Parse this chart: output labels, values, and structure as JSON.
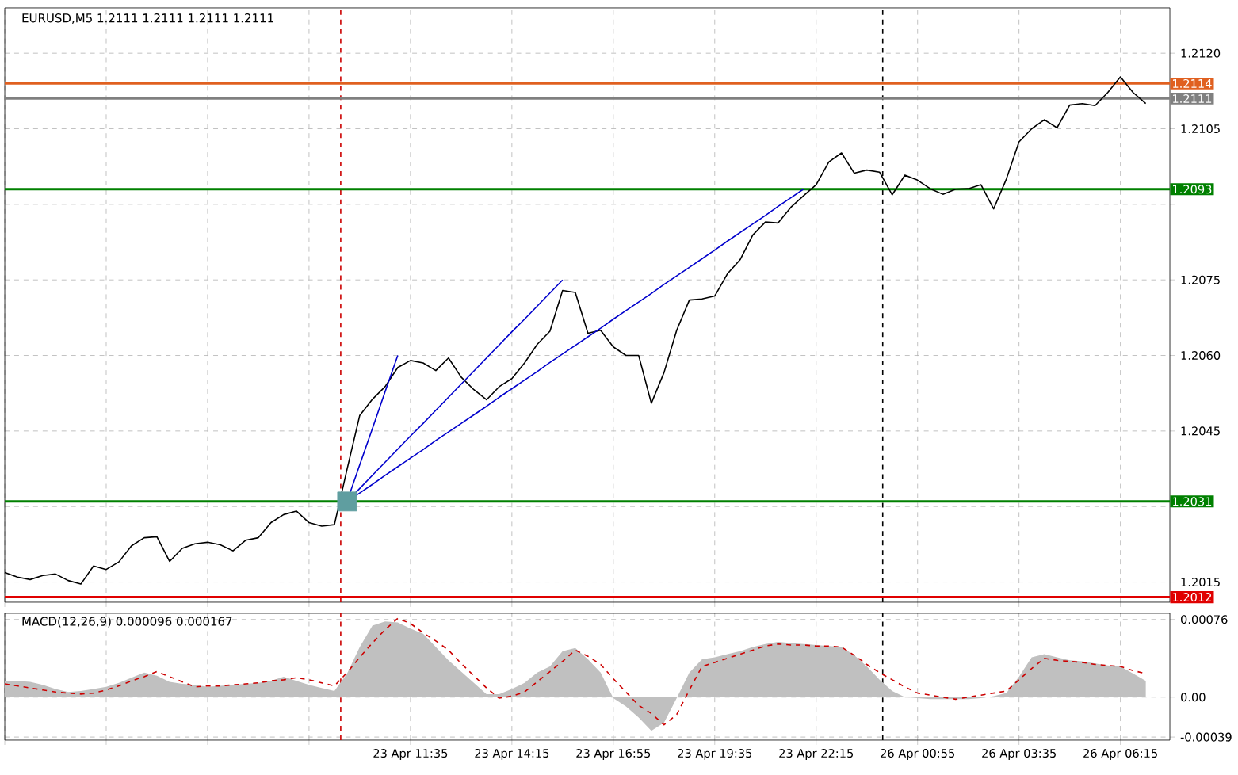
{
  "chart_data": [
    {
      "type": "line",
      "title": "EURUSD,M5  1.2111 1.2111 1.2111 1.2111",
      "ylim": [
        1.2011,
        1.2129
      ],
      "grid": true,
      "tick_labels": "y",
      "categories": [
        null,
        null,
        null,
        null,
        null,
        null,
        null,
        null,
        null,
        null,
        null,
        null,
        null,
        null,
        null,
        null,
        null,
        null,
        null,
        null,
        null,
        null,
        null,
        null,
        null,
        null,
        null,
        null,
        null,
        null,
        null,
        null,
        null,
        null,
        null,
        null,
        null,
        null,
        null,
        null,
        null,
        null,
        null,
        null,
        null,
        null,
        null,
        null,
        null,
        null,
        null,
        null,
        null,
        null,
        null,
        null,
        null,
        null,
        null,
        null,
        null,
        null,
        null,
        null,
        null,
        null,
        null,
        null,
        null,
        null,
        null,
        null,
        null,
        null,
        null,
        null,
        null,
        null,
        null,
        null,
        null,
        null,
        null,
        null,
        null,
        null,
        null,
        null,
        null,
        null,
        null,
        null
      ],
      "yticks": [
        {
          "value": 1.2015,
          "label": "1.2015"
        },
        {
          "value": 1.203,
          "label": null
        },
        {
          "value": 1.2045,
          "label": "1.2045"
        },
        {
          "value": 1.206,
          "label": "1.2060"
        },
        {
          "value": 1.2075,
          "label": "1.2075"
        },
        {
          "value": 1.209,
          "label": null
        },
        {
          "value": 1.2105,
          "label": "1.2105"
        },
        {
          "value": 1.212,
          "label": "1.2120"
        }
      ],
      "ref_lines": [
        {
          "axis": "y",
          "value": 1.2114,
          "label": "1.2114",
          "color": "#e06020"
        },
        {
          "axis": "y",
          "value": 1.2111,
          "label": "1.2111",
          "color": "#808080"
        },
        {
          "axis": "y",
          "value": 1.2093,
          "label": "1.2093",
          "color": "#008000"
        },
        {
          "axis": "y",
          "value": 1.2031,
          "label": "1.2031",
          "color": "#008000"
        },
        {
          "axis": "y",
          "value": 1.2012,
          "label": "1.2012",
          "color": "#e00000"
        }
      ],
      "series": [
        {
          "type": "scatter",
          "marker": "square",
          "color": "#5f9ea0",
          "values": [
            null,
            null,
            null,
            null,
            null,
            null,
            null,
            null,
            null,
            null,
            null,
            null,
            null,
            null,
            null,
            null,
            null,
            null,
            null,
            null,
            null,
            null,
            null,
            null,
            null,
            null,
            null,
            1.2031,
            null,
            null,
            null,
            null,
            null,
            null,
            null,
            null,
            null,
            null,
            null,
            null,
            null,
            null,
            null,
            null,
            null,
            null,
            null,
            null,
            null,
            null,
            null,
            null,
            null,
            null,
            null,
            null,
            null,
            null,
            null,
            null,
            null,
            null,
            null,
            null,
            null,
            null,
            null,
            null,
            null,
            null,
            null,
            null,
            null,
            null,
            null,
            null,
            null,
            null,
            null,
            null,
            null,
            null,
            null,
            null,
            null,
            null,
            null,
            null,
            null,
            null,
            null,
            null
          ]
        },
        {
          "type": "line",
          "color": "#000000",
          "values": [
            1.20169,
            1.2016,
            1.20155,
            1.20163,
            1.20166,
            1.20153,
            1.20146,
            1.20182,
            1.20175,
            1.2019,
            1.20222,
            1.20238,
            1.2024,
            1.20191,
            1.20217,
            1.20226,
            1.20229,
            1.20224,
            1.20212,
            1.20233,
            1.20238,
            1.20268,
            1.20284,
            1.20291,
            1.20268,
            1.20261,
            1.20264,
            1.20374,
            1.20481,
            1.20513,
            1.20538,
            1.20576,
            1.2059,
            1.20585,
            1.2057,
            1.20595,
            1.20557,
            1.20532,
            1.20512,
            1.20538,
            1.20554,
            1.20585,
            1.20622,
            1.20648,
            1.20729,
            1.20725,
            1.20644,
            1.2065,
            1.20617,
            1.206,
            1.206,
            1.20505,
            1.20566,
            1.2065,
            1.2071,
            1.20712,
            1.20718,
            1.20762,
            1.2079,
            1.20839,
            1.20865,
            1.20863,
            1.20894,
            1.20917,
            1.20939,
            1.20984,
            1.21002,
            1.20962,
            1.20968,
            1.20964,
            1.20919,
            1.20958,
            1.20948,
            1.20931,
            1.2092,
            1.2093,
            1.20931,
            1.20939,
            1.20891,
            1.2095,
            1.21024,
            1.2105,
            1.21068,
            1.21052,
            1.21097,
            1.211,
            1.21096,
            1.21122,
            1.21153,
            1.21122,
            1.211,
            null
          ]
        },
        {
          "type": "line",
          "color": "#0000cc",
          "values": [
            null,
            null,
            null,
            null,
            null,
            null,
            null,
            null,
            null,
            null,
            null,
            null,
            null,
            null,
            null,
            null,
            null,
            null,
            null,
            null,
            null,
            null,
            null,
            null,
            null,
            null,
            null,
            1.2031,
            1.20383,
            1.20455,
            1.20528,
            1.206,
            null,
            null,
            null,
            null,
            null,
            null,
            null,
            null,
            null,
            null,
            null,
            null,
            null,
            null,
            null,
            null,
            null,
            null,
            null,
            null,
            null,
            null,
            null,
            null,
            null,
            null,
            null,
            null,
            null,
            null,
            null,
            null,
            null,
            null,
            null,
            null,
            null,
            null,
            null,
            null,
            null,
            null,
            null,
            null,
            null,
            null,
            null,
            null,
            null,
            null,
            null,
            null,
            null,
            null,
            null,
            null,
            null,
            null,
            null,
            null
          ]
        },
        {
          "type": "line",
          "color": "#0000cc",
          "values": [
            null,
            null,
            null,
            null,
            null,
            null,
            null,
            null,
            null,
            null,
            null,
            null,
            null,
            null,
            null,
            null,
            null,
            null,
            null,
            null,
            null,
            null,
            null,
            null,
            null,
            null,
            null,
            1.2031,
            1.20336,
            1.20362,
            1.20388,
            1.20414,
            1.2044,
            1.20465,
            1.20491,
            1.20517,
            1.20543,
            1.20569,
            1.20595,
            1.20621,
            1.20647,
            1.20672,
            1.20698,
            1.20724,
            1.2075,
            null,
            null,
            null,
            null,
            null,
            null,
            null,
            null,
            null,
            null,
            null,
            null,
            null,
            null,
            null,
            null,
            null,
            null,
            null,
            null,
            null,
            null,
            null,
            null,
            null,
            null,
            null,
            null,
            null,
            null,
            null,
            null,
            null,
            null,
            null,
            null,
            null,
            null,
            null,
            null,
            null,
            null,
            null,
            null,
            null,
            null,
            null
          ]
        },
        {
          "type": "line",
          "color": "#0000cc",
          "values": [
            null,
            null,
            null,
            null,
            null,
            null,
            null,
            null,
            null,
            null,
            null,
            null,
            null,
            null,
            null,
            null,
            null,
            null,
            null,
            null,
            null,
            null,
            null,
            null,
            null,
            null,
            null,
            1.2031,
            1.20327,
            1.20344,
            1.20362,
            1.20379,
            1.20396,
            1.20413,
            1.20431,
            1.20448,
            1.20465,
            1.20482,
            1.20499,
            1.20517,
            1.20534,
            1.20551,
            1.20568,
            1.20586,
            1.20603,
            1.2062,
            1.20637,
            1.20654,
            1.20672,
            1.20689,
            1.20706,
            1.20723,
            1.20741,
            1.20758,
            1.20775,
            1.20792,
            1.20809,
            1.20827,
            1.20844,
            1.20861,
            1.20878,
            1.20896,
            1.20913,
            1.2093,
            null,
            null,
            null,
            null,
            null,
            null,
            null,
            null,
            null,
            null,
            null,
            null,
            null,
            null,
            null,
            null,
            null,
            null,
            null,
            null,
            null,
            null,
            null,
            null,
            null,
            null,
            null,
            null
          ]
        }
      ]
    },
    {
      "type": "area",
      "title": "MACD(12,26,9) 0.000096 0.000167",
      "ylim": [
        -0.00042,
        0.00082
      ],
      "grid": true,
      "categories": [
        null,
        null,
        null,
        null,
        null,
        null,
        null,
        null,
        null,
        null,
        null,
        null,
        null,
        null,
        null,
        null,
        null,
        null,
        null,
        null,
        null,
        null,
        null,
        null,
        null,
        null,
        null,
        null,
        null,
        null,
        null,
        null,
        "23 Apr 11:35",
        null,
        null,
        null,
        null,
        null,
        null,
        null,
        "23 Apr 14:15",
        null,
        null,
        null,
        null,
        null,
        null,
        null,
        "23 Apr 16:55",
        null,
        null,
        null,
        null,
        null,
        null,
        null,
        "23 Apr 19:35",
        null,
        null,
        null,
        null,
        null,
        null,
        null,
        "23 Apr 22:15",
        null,
        null,
        null,
        null,
        null,
        null,
        null,
        "26 Apr 00:55",
        null,
        null,
        null,
        null,
        null,
        null,
        null,
        "26 Apr 03:35",
        null,
        null,
        null,
        null,
        null,
        null,
        null,
        "26 Apr 06:15",
        null,
        null,
        null
      ],
      "yticks": [
        {
          "value": 0.00076,
          "label": "0.00076"
        },
        {
          "value": 0,
          "label": "0.00"
        },
        {
          "value": -0.00039,
          "label": "-0.00039"
        }
      ],
      "series": [
        {
          "color": "#c0c0c0",
          "values": [
            0.00016,
            0.00016,
            0.00015,
            0.00012,
            8e-05,
            5e-05,
            6e-05,
            8e-05,
            0.0001,
            0.00014,
            0.00019,
            0.00024,
            0.00021,
            0.00015,
            0.00013,
            0.00012,
            0.0001,
            0.00011,
            0.00012,
            0.00013,
            0.00014,
            0.00016,
            0.0002,
            0.00016,
            0.00012,
            9e-05,
            6e-05,
            0.00023,
            0.00049,
            0.0007,
            0.00074,
            0.00073,
            0.00067,
            0.00062,
            0.00049,
            0.00036,
            0.00025,
            0.00014,
            3e-05,
            3e-05,
            8e-05,
            0.00014,
            0.00024,
            0.0003,
            0.00045,
            0.00048,
            0.00037,
            0.00024,
            -1e-05,
            -9e-05,
            -0.0002,
            -0.00033,
            -0.00025,
            -1e-05,
            0.00024,
            0.00037,
            0.00039,
            0.00042,
            0.00045,
            0.00049,
            0.00052,
            0.00054,
            0.00053,
            0.00052,
            0.00051,
            0.0005,
            0.00049,
            0.00041,
            0.0003,
            0.00017,
            6e-05,
            0.0,
            -1e-05,
            -2e-05,
            -2e-05,
            -2e-05,
            -2e-05,
            -1e-05,
            1e-05,
            4e-05,
            0.0002,
            0.00039,
            0.00042,
            0.00039,
            0.00036,
            0.00035,
            0.00033,
            0.00031,
            0.0003,
            0.00023,
            0.00016,
            null
          ]
        },
        {
          "type": "line",
          "color": "#cc0000",
          "line_style": "dashed",
          "values": [
            0.00013,
            0.00011,
            9e-05,
            7e-05,
            5e-05,
            4e-05,
            3e-05,
            4e-05,
            7e-05,
            0.00011,
            0.00016,
            0.0002,
            0.00025,
            0.0002,
            0.00015,
            0.0001,
            0.00011,
            0.00011,
            0.00012,
            0.00013,
            0.00014,
            0.00016,
            0.00017,
            0.00019,
            0.00017,
            0.00014,
            0.00011,
            0.00024,
            0.00039,
            0.00053,
            0.00066,
            0.00077,
            0.00072,
            0.00063,
            0.00055,
            0.00046,
            0.00033,
            0.00021,
            9e-05,
            -1e-05,
            1e-05,
            5e-05,
            0.00015,
            0.00025,
            0.00035,
            0.00046,
            0.0004,
            0.00032,
            0.00018,
            5e-05,
            -8e-05,
            -0.00016,
            -0.00027,
            -0.00017,
            7e-05,
            0.0003,
            0.00034,
            0.00038,
            0.00042,
            0.00046,
            0.0005,
            0.00052,
            0.00051,
            0.00051,
            0.0005,
            0.0005,
            0.00049,
            0.00041,
            0.00032,
            0.00024,
            0.00017,
            0.0001,
            4e-05,
            2e-05,
            0.0,
            -2e-05,
            0.0,
            2e-05,
            4e-05,
            6e-05,
            0.00017,
            0.00028,
            0.00038,
            0.00036,
            0.00035,
            0.00034,
            0.00032,
            0.00031,
            0.0003,
            0.00026,
            0.00023,
            null
          ]
        }
      ]
    }
  ]
}
